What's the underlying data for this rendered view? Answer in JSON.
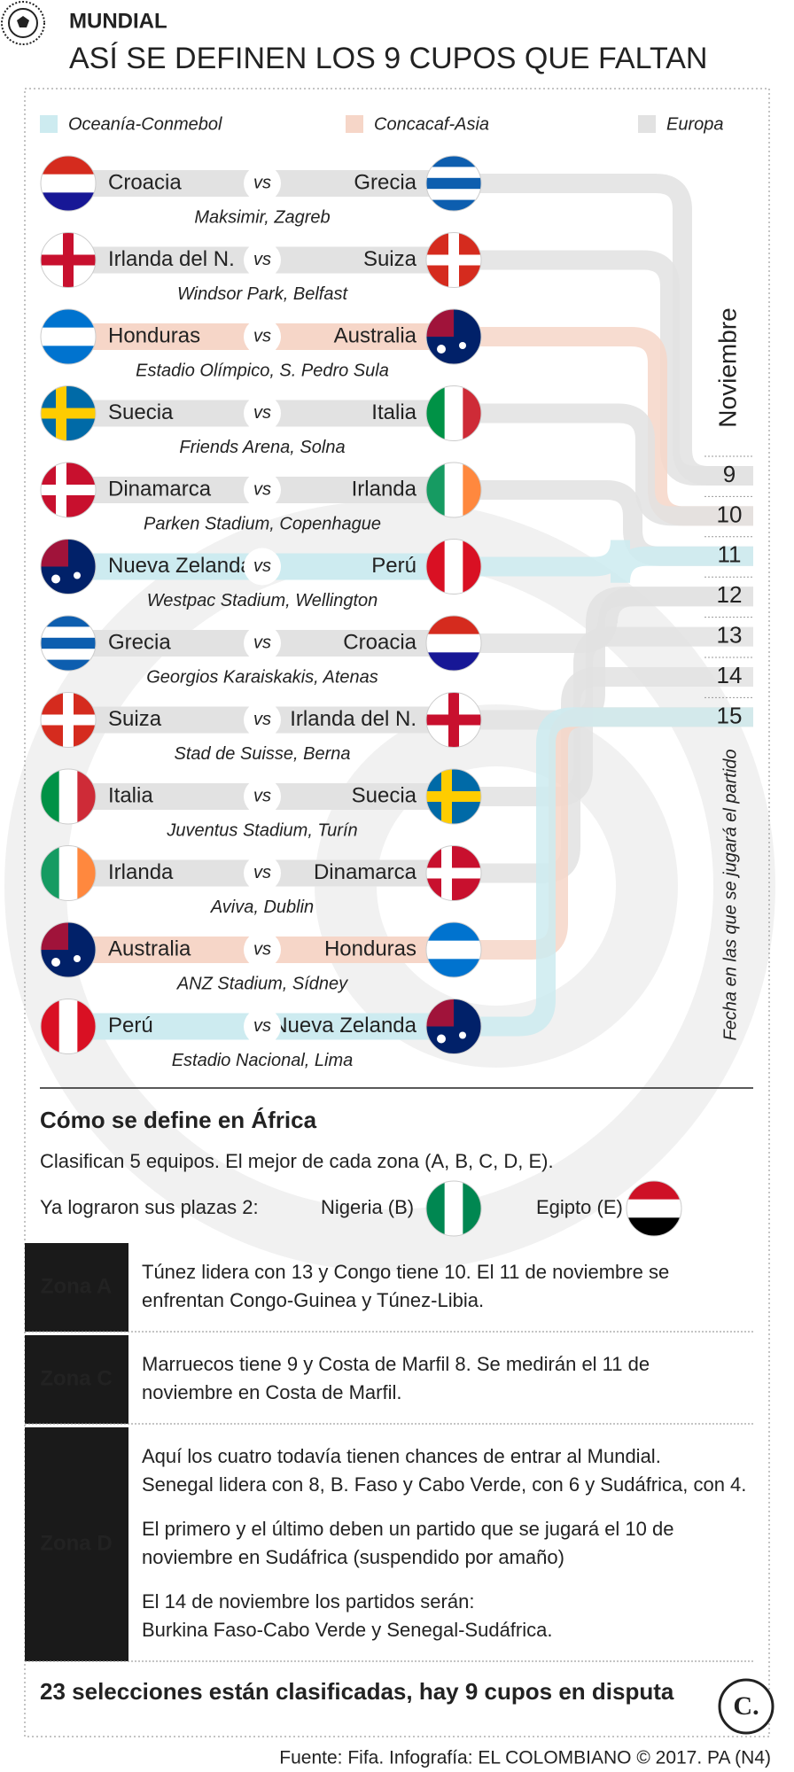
{
  "header": {
    "section": "MUNDIAL",
    "title": "ASÍ SE DEFINEN LOS 9 CUPOS QUE FALTAN"
  },
  "legend": [
    {
      "label": "Oceanía-Conmebol",
      "color": "#cdebf0"
    },
    {
      "label": "Concacaf-Asia",
      "color": "#f6d6c8"
    },
    {
      "label": "Europa",
      "color": "#e2e2e2"
    }
  ],
  "vs": "vs",
  "matches": [
    {
      "home": "Croacia",
      "away": "Grecia",
      "venue": "Maksimir, Zagreb",
      "color": "#e2e2e2"
    },
    {
      "home": "Irlanda del N.",
      "away": "Suiza",
      "venue": "Windsor Park, Belfast",
      "color": "#e2e2e2"
    },
    {
      "home": "Honduras",
      "away": "Australia",
      "venue": "Estadio Olímpico, S. Pedro Sula",
      "color": "#f6d6c8"
    },
    {
      "home": "Suecia",
      "away": "Italia",
      "venue": "Friends Arena, Solna",
      "color": "#e2e2e2"
    },
    {
      "home": "Dinamarca",
      "away": "Irlanda",
      "venue": "Parken Stadium, Copenhague",
      "color": "#e2e2e2"
    },
    {
      "home": "Nueva Zelanda",
      "away": "Perú",
      "venue": "Westpac Stadium, Wellington",
      "color": "#cdebf0"
    },
    {
      "home": "Grecia",
      "away": "Croacia",
      "venue": "Georgios Karaiskakis, Atenas",
      "color": "#e2e2e2"
    },
    {
      "home": "Suiza",
      "away": "Irlanda del N.",
      "venue": "Stad de Suisse, Berna",
      "color": "#e2e2e2"
    },
    {
      "home": "Italia",
      "away": "Suecia",
      "venue": "Juventus Stadium, Turín",
      "color": "#e2e2e2"
    },
    {
      "home": "Irlanda",
      "away": "Dinamarca",
      "venue": "Aviva, Dublin",
      "color": "#e2e2e2"
    },
    {
      "home": "Australia",
      "away": "Honduras",
      "venue": "ANZ Stadium, Sídney",
      "color": "#f6d6c8"
    },
    {
      "home": "Perú",
      "away": "Nueva Zelanda",
      "venue": "Estadio Nacional, Lima",
      "color": "#cdebf0"
    }
  ],
  "month": "Noviembre",
  "dates": [
    "9",
    "10",
    "11",
    "12",
    "13",
    "14",
    "15"
  ],
  "date_caption": "Fecha en las que se jugará el partido",
  "africa": {
    "title": "Cómo se define en África",
    "intro": "Clasifican 5 equipos. El mejor de cada zona (A, B, C, D, E).",
    "qualified_label": "Ya lograron sus plazas 2:",
    "qualified": [
      "Nigeria (B)",
      "Egipto (E)"
    ],
    "zones": [
      {
        "label": "Zona A",
        "paragraphs": [
          [
            "Túnez lidera con 13 y Congo tiene 10. El 11 de noviembre se",
            "enfrentan Congo-Guinea y Túnez-Libia."
          ]
        ]
      },
      {
        "label": "Zona C",
        "paragraphs": [
          [
            "Marruecos tiene 9 y Costa de Marfil 8. Se medirán el 11 de",
            "noviembre en Costa de Marfil."
          ]
        ]
      },
      {
        "label": "Zona D",
        "paragraphs": [
          [
            "Aquí los cuatro todavía tienen chances de entrar al Mundial.",
            "Senegal lidera con 8, B. Faso y Cabo Verde, con 6 y Sudáfrica, con 4."
          ],
          [
            "El primero y el último deben un partido que se jugará el 10 de",
            "noviembre en Sudáfrica (suspendido por amaño)"
          ],
          [
            "El 14 de noviembre los partidos serán:",
            "Burkina Faso-Cabo Verde y Senegal-Sudáfrica."
          ]
        ]
      }
    ]
  },
  "footer": {
    "summary": "23 selecciones están clasificadas, hay 9 cupos en disputa",
    "logo": "C.",
    "source": "Fuente: Fifa. Infografía: EL COLOMBIANO © 2017. PA (N4)"
  }
}
